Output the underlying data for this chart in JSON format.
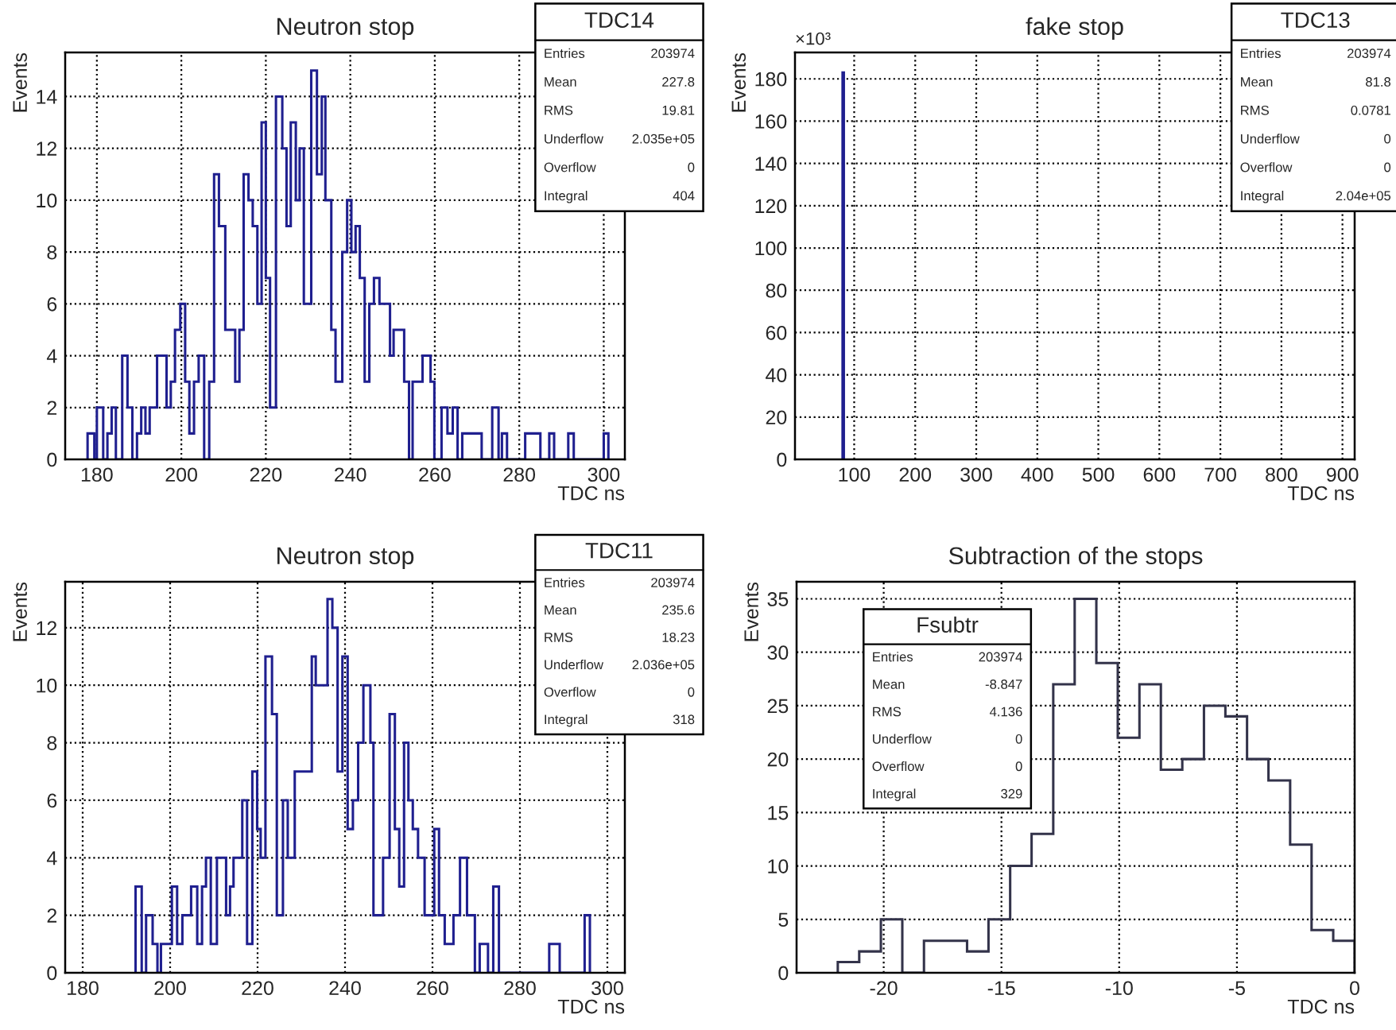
{
  "chart_data": [
    {
      "type": "histogram",
      "title": "Neutron stop",
      "xlabel": "TDC ns",
      "ylabel": "Events",
      "color": "#1f1f8f",
      "bins": [
        177.8,
        179.4,
        180,
        181.5,
        182.5,
        183.5,
        184.5,
        186,
        187.25,
        188.4,
        189.5,
        190.5,
        191.5,
        192.5,
        194.25,
        196.5,
        197.5,
        198.5,
        199.75,
        200.9,
        201.9,
        203,
        204.1,
        205.4,
        206.6,
        207.75,
        208.9,
        210.4,
        212.75,
        213.75,
        214.75,
        215.9,
        216.9,
        218,
        219,
        220,
        221,
        222.4,
        223.9,
        224.9,
        225.9,
        227.1,
        228,
        229,
        230.75,
        232.1,
        233.25,
        234.1,
        235.5,
        236.5,
        238.1,
        239.25,
        240.25,
        241.25,
        242.25,
        243.4,
        244.5,
        245.6,
        246.9,
        249.4,
        250.25,
        252.75,
        253.9,
        254.75,
        257.1,
        259,
        259.9,
        261.6,
        263,
        264.25,
        265.4,
        266.5,
        271.1,
        273.6,
        275.1,
        275.9,
        277.1,
        281.4,
        285,
        287.1,
        288.25,
        291.6,
        292.9,
        300,
        301.1
      ],
      "values": [
        1,
        0,
        2,
        0,
        1,
        2,
        0,
        4,
        2,
        0,
        1,
        2,
        1,
        2,
        4,
        2,
        3,
        5,
        6,
        3,
        1,
        3,
        4,
        0,
        3,
        11,
        9,
        5,
        3,
        5,
        11,
        10,
        9,
        6,
        13,
        7,
        2,
        14,
        12,
        9,
        13,
        10,
        12,
        6,
        15,
        11,
        14,
        10,
        5,
        3,
        8,
        10,
        8,
        9,
        7,
        3,
        6,
        7,
        6,
        4,
        5,
        3,
        0,
        3,
        4,
        3,
        0,
        2,
        1,
        2,
        0,
        1,
        0,
        2,
        0,
        1,
        0,
        1,
        0,
        1,
        0,
        1,
        0,
        1
      ],
      "xlim": [
        172.5,
        305
      ],
      "ylim": [
        0,
        15.7
      ],
      "xticks": [
        180,
        200,
        220,
        240,
        260,
        280,
        300
      ],
      "yticks": [
        0,
        2,
        4,
        6,
        8,
        10,
        12,
        14
      ],
      "grid": true,
      "annotations": [
        "TDC14",
        "Entries",
        "203974",
        "Mean",
        "227.8",
        "RMS",
        "19.81",
        "Underflow",
        "2.035e+05",
        "Overflow",
        "0",
        "Integral",
        "404"
      ]
    },
    {
      "type": "histogram",
      "title": "fake stop",
      "xlabel": "TDC ns",
      "ylabel": "Events",
      "color": "#1f1f8f",
      "bins": [
        81,
        83
      ],
      "values": [
        183
      ],
      "xlim": [
        3,
        920
      ],
      "ylim": [
        0,
        192.5
      ],
      "xticks": [
        100,
        200,
        300,
        400,
        500,
        600,
        700,
        800,
        900
      ],
      "yticks": [
        0,
        20,
        40,
        60,
        80,
        100,
        120,
        140,
        160,
        180
      ],
      "grid": true,
      "annotations": [
        "TDC13",
        "Entries",
        "203974",
        "Mean",
        "81.8",
        "RMS",
        "0.0781",
        "Underflow",
        "0",
        "Overflow",
        "0",
        "Integral",
        "2.04e+05",
        "×10³"
      ]
    },
    {
      "type": "histogram",
      "title": "Neutron stop",
      "xlabel": "TDC ns",
      "ylabel": "Events",
      "color": "#1f1f8f",
      "bins": [
        192.1,
        193.5,
        194.5,
        196,
        197.1,
        197.9,
        200.4,
        201.6,
        202.8,
        204.8,
        206.2,
        207.3,
        208.2,
        209.3,
        210.7,
        212.8,
        213.7,
        214.5,
        216.5,
        217.6,
        218.8,
        219.9,
        220.7,
        221.8,
        223.3,
        224.4,
        225.8,
        226.9,
        228.5,
        232.4,
        233.3,
        236,
        237.1,
        238.3,
        239.4,
        240.6,
        241.8,
        243,
        244.2,
        245.8,
        246.5,
        248.7,
        250.2,
        251.4,
        252.4,
        253.5,
        254.5,
        255.5,
        256.7,
        258.2,
        260.4,
        261.5,
        262.8,
        264.8,
        266.3,
        267.9,
        269.7,
        270.8,
        272.7,
        273.9,
        275.2,
        286.7,
        289.1,
        294.8,
        296
      ],
      "values": [
        3,
        0,
        2,
        1,
        0,
        1,
        3,
        1,
        2,
        3,
        1,
        3,
        4,
        1,
        4,
        2,
        3,
        4,
        6,
        1,
        7,
        5,
        4,
        11,
        9,
        2,
        6,
        4,
        7,
        11,
        10,
        13,
        12,
        7,
        11,
        5,
        6,
        8,
        10,
        8,
        2,
        4,
        9,
        5,
        3,
        8,
        6,
        5,
        4,
        2,
        5,
        2,
        1,
        2,
        4,
        2,
        0,
        1,
        0,
        3,
        0,
        1,
        0,
        2
      ],
      "xlim": [
        176,
        304
      ],
      "ylim": [
        0,
        13.6
      ],
      "xticks": [
        180,
        200,
        220,
        240,
        260,
        280,
        300
      ],
      "yticks": [
        0,
        2,
        4,
        6,
        8,
        10,
        12
      ],
      "grid": true,
      "annotations": [
        "TDC11",
        "Entries",
        "203974",
        "Mean",
        "235.6",
        "RMS",
        "18.23",
        "Underflow",
        "2.036e+05",
        "Overflow",
        "0",
        "Integral",
        "318"
      ]
    },
    {
      "type": "histogram",
      "title": "Subtraction of the stops",
      "xlabel": "TDC ns",
      "ylabel": "Events",
      "color": "#33334a",
      "bins": [
        -21.95,
        -21.04,
        -20.12,
        -19.21,
        -18.29,
        -17.38,
        -16.46,
        -15.55,
        -14.63,
        -13.72,
        -12.8,
        -11.89,
        -10.97,
        -10.06,
        -9.14,
        -8.23,
        -7.32,
        -6.4,
        -5.49,
        -4.57,
        -3.66,
        -2.74,
        -1.83,
        -0.91,
        0
      ],
      "values": [
        1,
        2,
        5,
        0,
        3,
        3,
        2,
        5,
        10,
        13,
        27,
        35,
        29,
        22,
        27,
        19,
        20,
        25,
        24,
        20,
        18,
        12,
        4,
        3
      ],
      "xlim": [
        -23.7,
        0
      ],
      "ylim": [
        0,
        36.6
      ],
      "xticks": [
        -20,
        -15,
        -10,
        -5,
        0
      ],
      "yticks": [
        0,
        5,
        10,
        15,
        20,
        25,
        30,
        35
      ],
      "grid": true,
      "annotations": [
        "Fsubtr",
        "Entries",
        "203974",
        "Mean",
        "-8.847",
        "RMS",
        "4.136",
        "Underflow",
        "0",
        "Overflow",
        "0",
        "Integral",
        "329"
      ]
    }
  ]
}
